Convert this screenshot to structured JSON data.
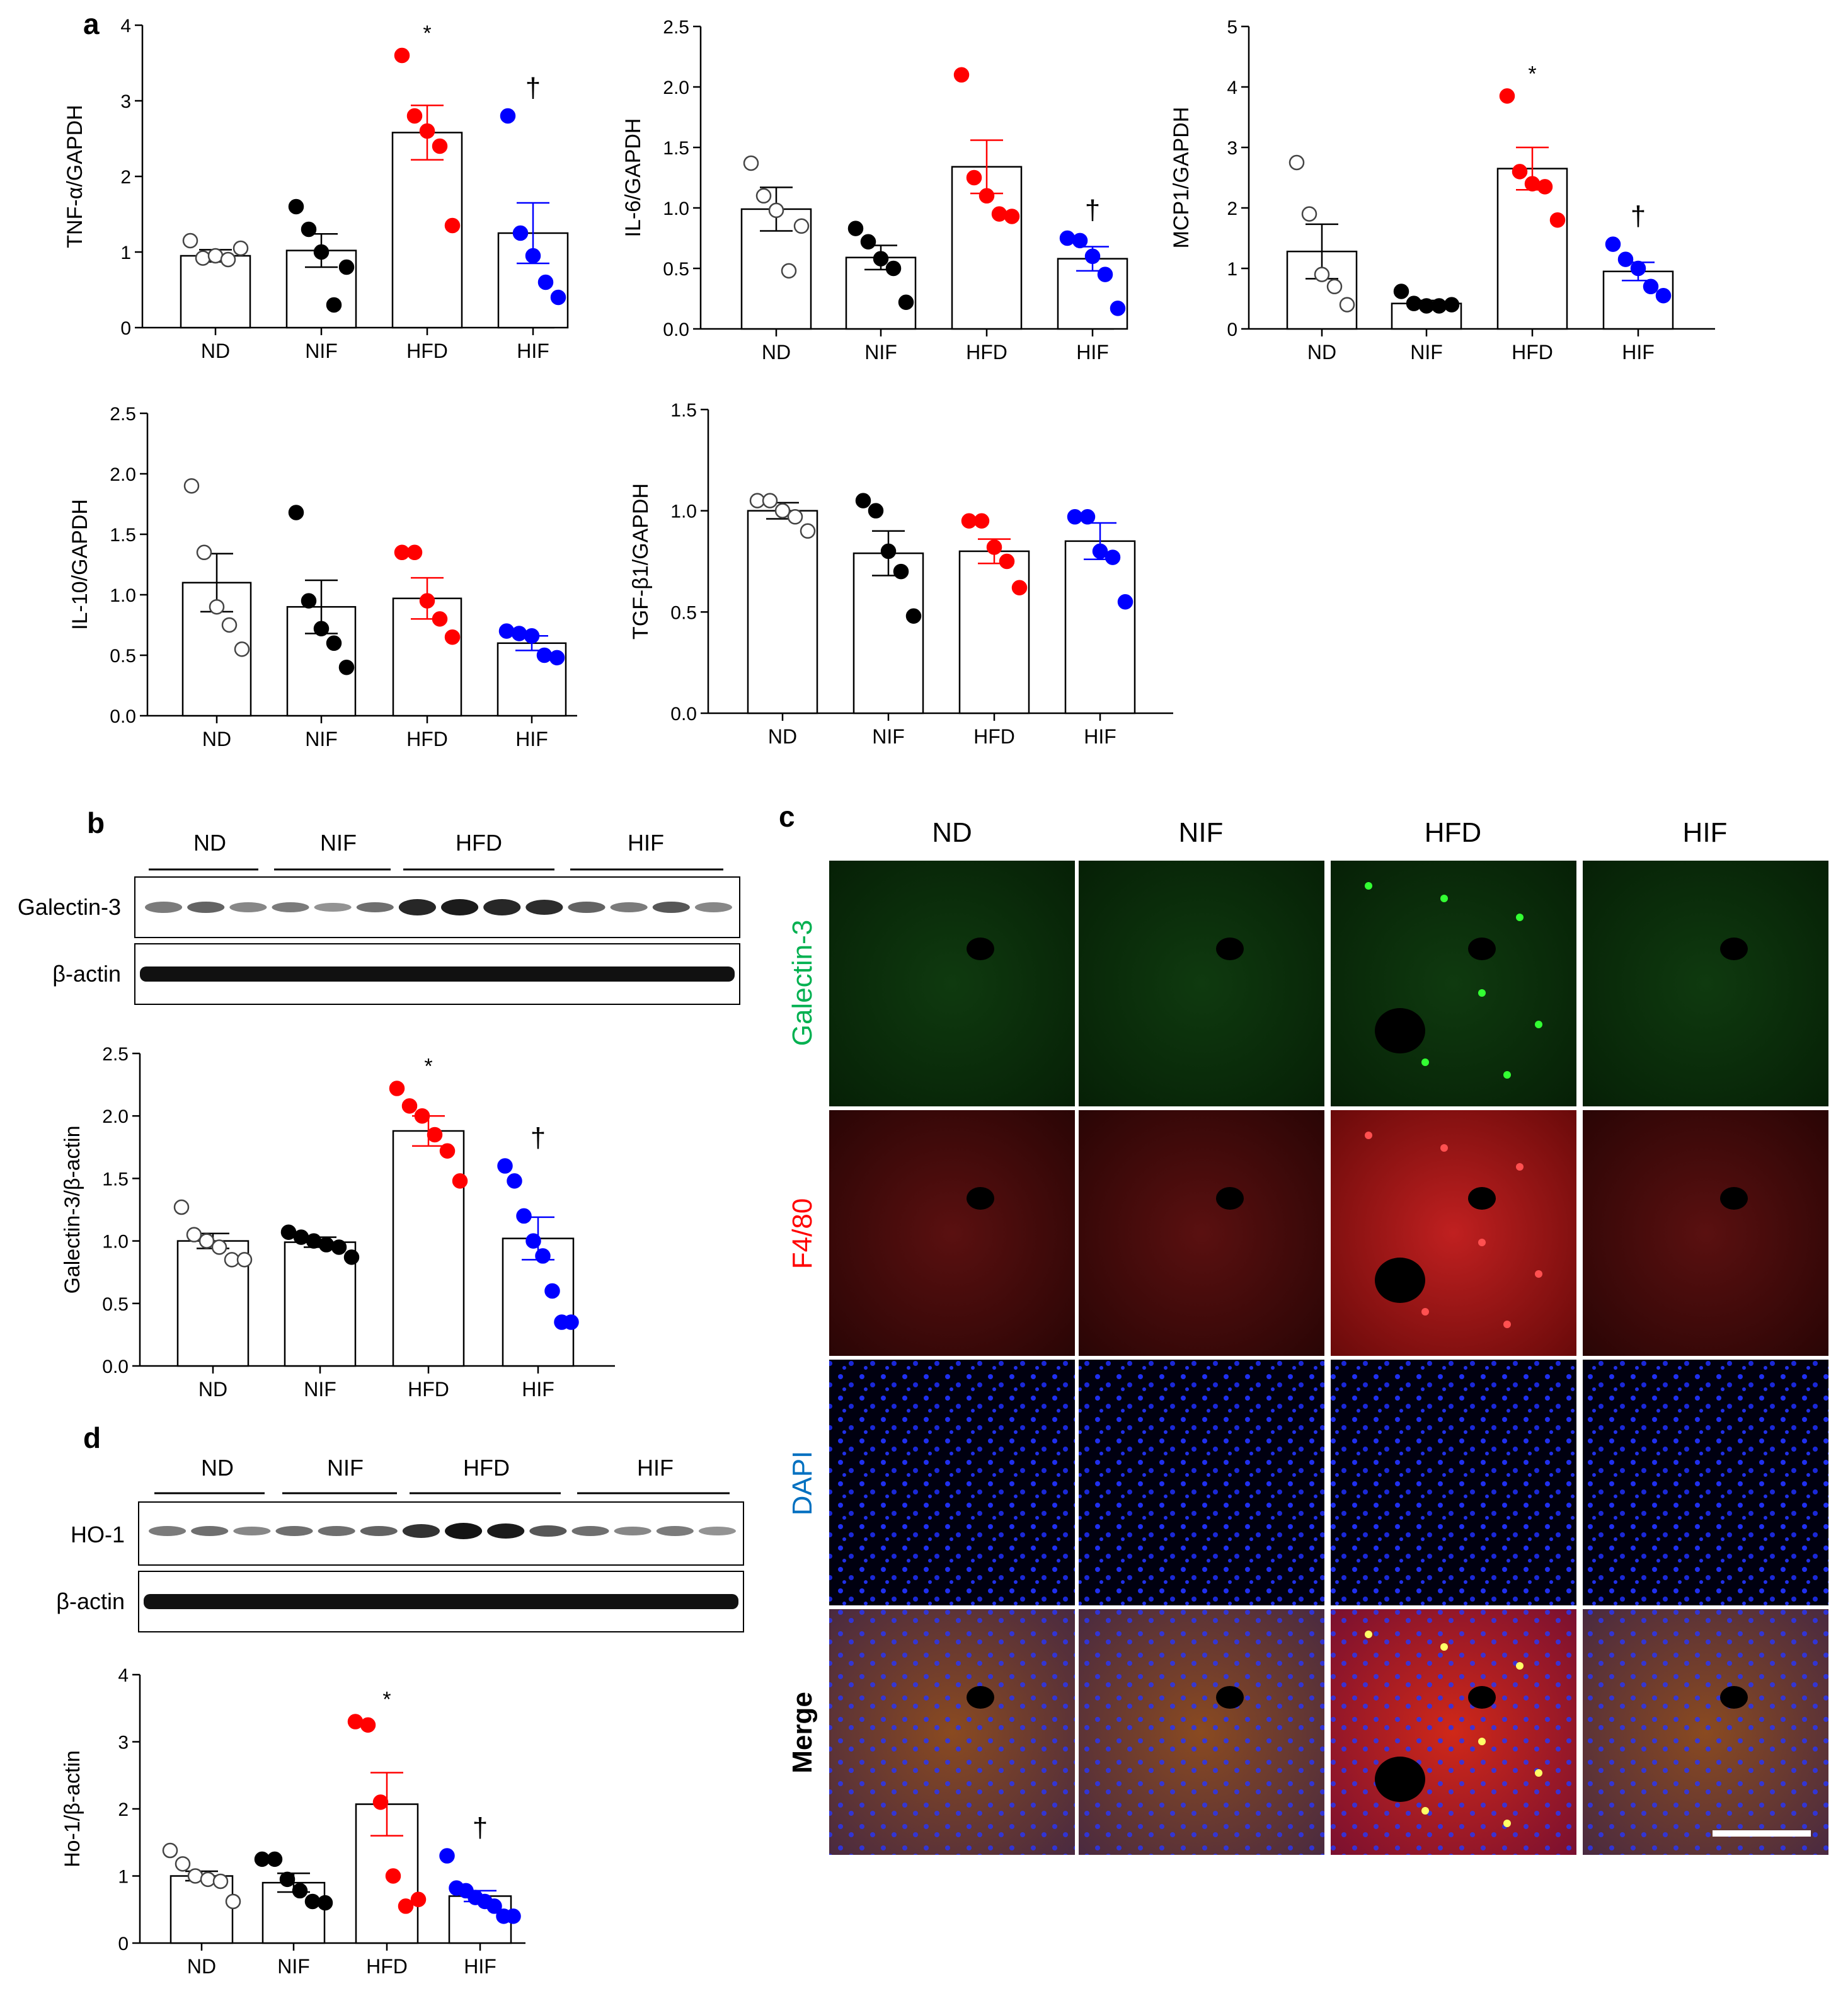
{
  "panel_letters": {
    "a": "a",
    "b": "b",
    "c": "c",
    "d": "d"
  },
  "groups": [
    "ND",
    "NIF",
    "HFD",
    "HIF"
  ],
  "colors": {
    "ND": "#ffffff",
    "NIF": "#000000",
    "HFD": "#ff0000",
    "HIF": "#0000ff"
  },
  "blot_b": {
    "labels": [
      "Galectin-3",
      "β-actin"
    ],
    "groups": [
      "ND",
      "NIF",
      "HFD",
      "HIF"
    ]
  },
  "blot_d": {
    "labels": [
      "HO-1",
      "β-actin"
    ],
    "groups": [
      "ND",
      "NIF",
      "HFD",
      "HIF"
    ]
  },
  "panel_c": {
    "columns": [
      "ND",
      "NIF",
      "HFD",
      "HIF"
    ],
    "rows": [
      {
        "label": "Galectin-3",
        "color": "#00b050"
      },
      {
        "label": "F4/80",
        "color": "#ff0000"
      },
      {
        "label": "DAPI",
        "color": "#0070c0"
      },
      {
        "label": "Merge",
        "color": "#000000"
      }
    ]
  },
  "chart_data": [
    {
      "id": "tnf",
      "type": "bar",
      "ylabel": "TNF-α/GAPDH",
      "categories": [
        "ND",
        "NIF",
        "HFD",
        "HIF"
      ],
      "ylim": [
        0,
        4
      ],
      "yticks": [
        "0",
        "1",
        "2",
        "3",
        "4"
      ],
      "values": [
        0.95,
        1.02,
        2.58,
        1.25
      ],
      "sem": [
        0.08,
        0.22,
        0.36,
        0.4
      ],
      "points": [
        [
          1.15,
          0.92,
          0.95,
          0.9,
          1.05
        ],
        [
          1.6,
          1.3,
          1.0,
          0.3,
          0.8
        ],
        [
          3.6,
          2.8,
          2.6,
          2.4,
          1.35
        ],
        [
          2.8,
          1.25,
          0.95,
          0.6,
          0.4
        ]
      ],
      "sig": [
        "",
        "",
        "*",
        "†"
      ]
    },
    {
      "id": "il6",
      "type": "bar",
      "ylabel": "IL-6/GAPDH",
      "categories": [
        "ND",
        "NIF",
        "HFD",
        "HIF"
      ],
      "ylim": [
        0,
        2.5
      ],
      "yticks": [
        "0.0",
        "0.5",
        "1.0",
        "1.5",
        "2.0",
        "2.5"
      ],
      "values": [
        0.99,
        0.59,
        1.34,
        0.58
      ],
      "sem": [
        0.18,
        0.1,
        0.22,
        0.1
      ],
      "points": [
        [
          1.37,
          1.1,
          0.98,
          0.48,
          0.85
        ],
        [
          0.83,
          0.72,
          0.58,
          0.5,
          0.22
        ],
        [
          2.1,
          1.25,
          1.1,
          0.95,
          0.93
        ],
        [
          0.75,
          0.73,
          0.6,
          0.45,
          0.17
        ]
      ],
      "sig": [
        "",
        "",
        "",
        "†"
      ]
    },
    {
      "id": "mcp1",
      "type": "bar",
      "ylabel": "MCP1/GAPDH",
      "categories": [
        "ND",
        "NIF",
        "HFD",
        "HIF"
      ],
      "ylim": [
        0,
        5
      ],
      "yticks": [
        "0",
        "1",
        "2",
        "3",
        "4",
        "5"
      ],
      "values": [
        1.28,
        0.42,
        2.65,
        0.95
      ],
      "sem": [
        0.45,
        0.05,
        0.35,
        0.15
      ],
      "points": [
        [
          2.75,
          1.9,
          0.9,
          0.7,
          0.4
        ],
        [
          0.62,
          0.42,
          0.38,
          0.38,
          0.4
        ],
        [
          3.85,
          2.6,
          2.4,
          2.35,
          1.8
        ],
        [
          1.4,
          1.15,
          1.0,
          0.7,
          0.55
        ]
      ],
      "sig": [
        "",
        "",
        "*",
        "†"
      ]
    },
    {
      "id": "il10",
      "type": "bar",
      "ylabel": "IL-10/GAPDH",
      "categories": [
        "ND",
        "NIF",
        "HFD",
        "HIF"
      ],
      "ylim": [
        0,
        2.5
      ],
      "yticks": [
        "0.0",
        "0.5",
        "1.0",
        "1.5",
        "2.0",
        "2.5"
      ],
      "values": [
        1.1,
        0.9,
        0.97,
        0.6
      ],
      "sem": [
        0.24,
        0.22,
        0.17,
        0.06
      ],
      "points": [
        [
          1.9,
          1.35,
          0.9,
          0.75,
          0.55
        ],
        [
          1.68,
          0.95,
          0.72,
          0.6,
          0.4
        ],
        [
          1.35,
          1.35,
          0.95,
          0.8,
          0.65
        ],
        [
          0.7,
          0.68,
          0.66,
          0.5,
          0.48
        ]
      ],
      "sig": [
        "",
        "",
        "",
        ""
      ]
    },
    {
      "id": "tgf",
      "type": "bar",
      "ylabel": "TGF-β1/GAPDH",
      "categories": [
        "ND",
        "NIF",
        "HFD",
        "HIF"
      ],
      "ylim": [
        0,
        1.5
      ],
      "yticks": [
        "0.0",
        "0.5",
        "1.0",
        "1.5"
      ],
      "values": [
        1.0,
        0.79,
        0.8,
        0.85
      ],
      "sem": [
        0.04,
        0.11,
        0.06,
        0.09
      ],
      "points": [
        [
          1.05,
          1.05,
          1.0,
          0.97,
          0.9
        ],
        [
          1.05,
          1.0,
          0.8,
          0.7,
          0.48
        ],
        [
          0.95,
          0.95,
          0.82,
          0.75,
          0.62
        ],
        [
          0.97,
          0.97,
          0.8,
          0.77,
          0.55
        ]
      ],
      "sig": [
        "",
        "",
        "",
        ""
      ]
    },
    {
      "id": "gal3",
      "type": "bar",
      "ylabel": "Galectin-3/β-actin",
      "categories": [
        "ND",
        "NIF",
        "HFD",
        "HIF"
      ],
      "ylim": [
        0,
        2.5
      ],
      "yticks": [
        "0.0",
        "0.5",
        "1.0",
        "1.5",
        "2.0",
        "2.5"
      ],
      "values": [
        1.0,
        0.99,
        1.88,
        1.02
      ],
      "sem": [
        0.06,
        0.04,
        0.12,
        0.17
      ],
      "points": [
        [
          1.27,
          1.05,
          1.0,
          0.95,
          0.85,
          0.85
        ],
        [
          1.07,
          1.03,
          1.0,
          0.97,
          0.95,
          0.87
        ],
        [
          2.22,
          2.08,
          2.0,
          1.85,
          1.72,
          1.48
        ],
        [
          1.6,
          1.48,
          1.2,
          1.0,
          0.88,
          0.6,
          0.35,
          0.35
        ]
      ],
      "sig": [
        "",
        "",
        "*",
        "†"
      ]
    },
    {
      "id": "ho1",
      "type": "bar",
      "ylabel": "Ho-1/β-actin",
      "categories": [
        "ND",
        "NIF",
        "HFD",
        "HIF"
      ],
      "ylim": [
        0,
        4
      ],
      "yticks": [
        "0",
        "1",
        "2",
        "3",
        "4"
      ],
      "values": [
        1.0,
        0.9,
        2.07,
        0.7
      ],
      "sem": [
        0.07,
        0.14,
        0.47,
        0.08
      ],
      "points": [
        [
          1.38,
          1.18,
          1.0,
          0.95,
          0.92,
          0.62
        ],
        [
          1.25,
          1.25,
          0.95,
          0.78,
          0.62,
          0.6
        ],
        [
          3.3,
          3.25,
          2.1,
          1.0,
          0.55,
          0.65
        ],
        [
          1.3,
          0.82,
          0.78,
          0.68,
          0.62,
          0.55,
          0.4,
          0.4
        ]
      ],
      "sig": [
        "",
        "",
        "*",
        "†"
      ]
    }
  ]
}
